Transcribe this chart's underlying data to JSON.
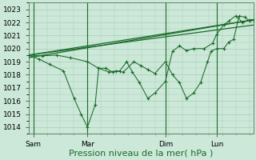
{
  "bg_color": "#cce8d8",
  "grid_color": "#aaccbb",
  "line_color": "#1a6b2a",
  "xlabel": "Pression niveau de la mer( hPa )",
  "ylim": [
    1013.5,
    1023.5
  ],
  "yticks": [
    1014,
    1015,
    1016,
    1017,
    1018,
    1019,
    1020,
    1021,
    1022,
    1023
  ],
  "xtick_labels": [
    "Sam",
    "Mar",
    "Dim",
    "Lun"
  ],
  "xtick_positions": [
    7,
    84,
    195,
    268
  ],
  "xlim": [
    0,
    320
  ],
  "vline_positions": [
    7,
    84,
    195,
    268
  ],
  "trend1_x": [
    0,
    320
  ],
  "trend1_y": [
    1019.5,
    1022.2
  ],
  "trend2_x": [
    0,
    320
  ],
  "trend2_y": [
    1019.5,
    1021.8
  ],
  "trend3_x": [
    0,
    320
  ],
  "trend3_y": [
    1019.3,
    1022.2
  ],
  "jagged1": [
    0,
    1019.5,
    20,
    1019.45,
    40,
    1019.5,
    60,
    1019.3,
    84,
    1019.0,
    100,
    1018.5,
    115,
    1018.2,
    125,
    1018.3,
    135,
    1018.2,
    150,
    1019.0,
    160,
    1018.7,
    170,
    1018.4,
    180,
    1018.1,
    195,
    1019.0,
    205,
    1018.0,
    215,
    1017.4,
    225,
    1016.2,
    235,
    1016.6,
    245,
    1017.4,
    255,
    1019.0,
    260,
    1019.8,
    268,
    1020.0,
    278,
    1020.0,
    285,
    1020.5,
    292,
    1020.7,
    300,
    1022.5,
    308,
    1022.4,
    315,
    1022.1,
    320,
    1022.2
  ],
  "jagged2": [
    0,
    1019.5,
    15,
    1019.2,
    30,
    1018.8,
    50,
    1018.3,
    65,
    1016.2,
    75,
    1015.0,
    84,
    1014.0,
    95,
    1015.7,
    100,
    1018.5,
    110,
    1018.5,
    120,
    1018.2,
    130,
    1018.3,
    140,
    1019.0,
    148,
    1018.2,
    158,
    1017.4,
    170,
    1016.2,
    180,
    1016.6,
    195,
    1017.5,
    205,
    1019.8,
    215,
    1020.2,
    225,
    1019.85,
    235,
    1020.0,
    250,
    1020.0,
    262,
    1020.4,
    268,
    1021.1,
    278,
    1021.8,
    285,
    1022.1,
    295,
    1022.5,
    305,
    1022.0,
    315,
    1022.2,
    320,
    1022.2
  ],
  "xlabel_fontsize": 8,
  "tick_fontsize": 6.5
}
